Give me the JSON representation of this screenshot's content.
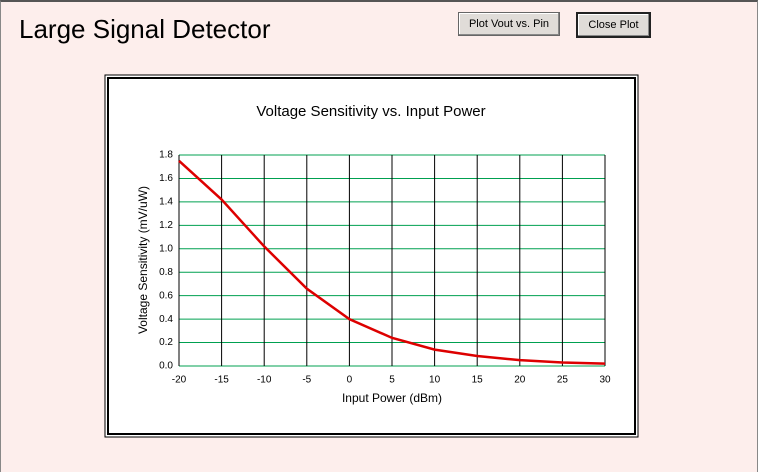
{
  "window": {
    "title": "Large Signal Detector",
    "buttons": [
      "Plot Vout vs. Pin",
      "Close Plot"
    ]
  },
  "chart_data": {
    "type": "line",
    "title": "Voltage Sensitivity vs. Input Power",
    "x_label": "Input Power (dBm)",
    "y_label": "Voltage Sensitivity (mV/uW)",
    "x": [
      -20,
      -15,
      -10,
      -5,
      0,
      5,
      10,
      15,
      20,
      25,
      30
    ],
    "series": [
      {
        "name": "Voltage Sensitivity",
        "color": "#dd0000",
        "values": [
          1.75,
          1.42,
          1.02,
          0.66,
          0.4,
          0.24,
          0.14,
          0.085,
          0.05,
          0.03,
          0.02
        ]
      }
    ],
    "xlim": [
      -20,
      30
    ],
    "xticks": [
      -20,
      -15,
      -10,
      -5,
      0,
      5,
      10,
      15,
      20,
      25,
      30
    ],
    "ylim": [
      0,
      1.8
    ],
    "yticks": [
      {
        "value": 0,
        "label": "0.0"
      },
      0.2,
      0.4,
      0.6,
      0.8,
      {
        "value": 1,
        "label": "1.0"
      },
      1.2,
      1.4,
      1.6,
      1.8
    ],
    "grid": true,
    "x_grid_color": "#000000",
    "y_grid_color": "#00a050"
  }
}
